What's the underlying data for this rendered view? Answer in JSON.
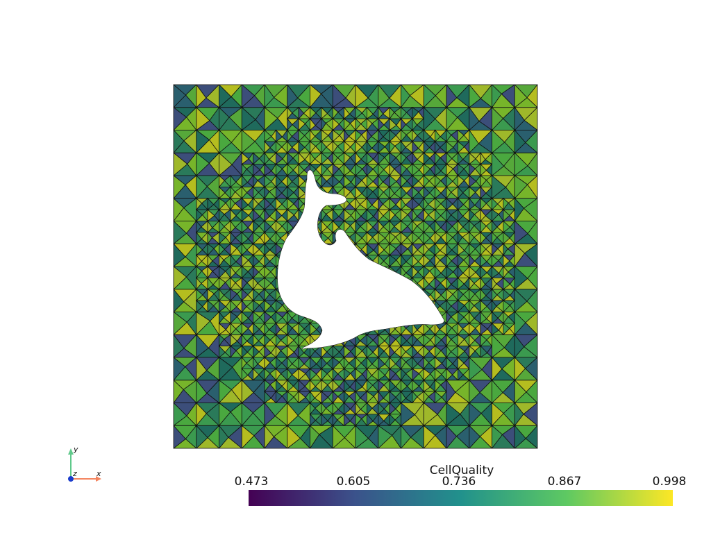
{
  "scalar_bar": {
    "title": "CellQuality",
    "ticks": [
      "0.473",
      "0.605",
      "0.736",
      "0.867",
      "0.998"
    ],
    "range": [
      0.473,
      0.998
    ],
    "colormap": "viridis",
    "stops": [
      "#440154",
      "#3b528b",
      "#21918c",
      "#5ec962",
      "#fde725"
    ]
  },
  "orientation_axes": {
    "x_label": "x",
    "y_label": "y",
    "z_label": "z",
    "x_color": "#f4845f",
    "y_color": "#5fc98b",
    "z_color": "#1a3ccc"
  },
  "mesh": {
    "edge_color": "#111111",
    "face_colors": [
      "#3b9a4f",
      "#4aa83f",
      "#77b52a",
      "#b5bd1f",
      "#2a7a5a",
      "#1f6a5c",
      "#2a5f6e",
      "#3c4e7a",
      "#9fb82a",
      "#56a83a"
    ]
  }
}
